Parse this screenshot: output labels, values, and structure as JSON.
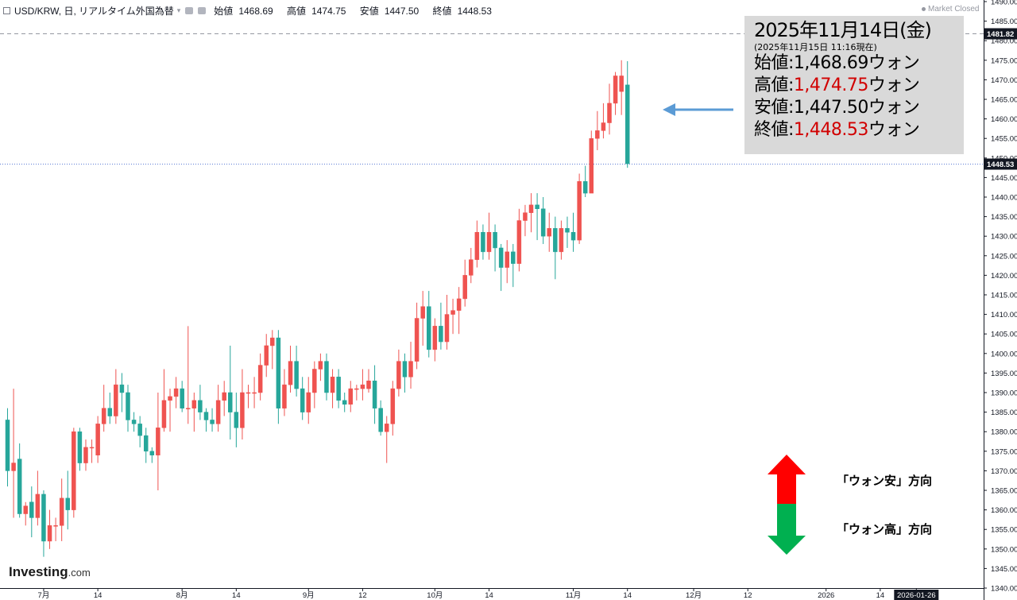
{
  "header": {
    "symbol": "USD/KRW, 日, リアルタイム外国為替",
    "open_label": "始値",
    "open": "1468.69",
    "high_label": "高値",
    "high": "1474.75",
    "low_label": "安値",
    "low": "1447.50",
    "close_label": "終値",
    "close": "1448.53"
  },
  "market_status": "Market Closed",
  "info_box": {
    "date": "2025年11月14日(金)",
    "asof": "(2025年11月15日 11:16現在)",
    "rows": [
      {
        "label": "始値:",
        "value": "1,468.69",
        "unit": "ウォン",
        "red": false
      },
      {
        "label": "高値:",
        "value": "1,474.75",
        "unit": "ウォン",
        "red": true
      },
      {
        "label": "安値:",
        "value": "1,447.50",
        "unit": "ウォン",
        "red": false
      },
      {
        "label": "終値:",
        "value": "1,448.53",
        "unit": "ウォン",
        "red": true
      }
    ]
  },
  "direction_labels": {
    "up": "「ウォン安」方向",
    "down": "「ウォン高」方向"
  },
  "logo": {
    "main": "Investing",
    "suffix": ".com"
  },
  "colors": {
    "up": "#ef5350",
    "down": "#26a69a",
    "arrow_up": "#ff0000",
    "arrow_down": "#00b050",
    "pointer": "#5b9bd5",
    "price_label": "#131722"
  },
  "chart_data": {
    "type": "candlestick",
    "ylim": [
      1340,
      1490
    ],
    "y_ticks": [
      1340,
      1345,
      1350,
      1355,
      1360,
      1365,
      1370,
      1375,
      1380,
      1385,
      1390,
      1395,
      1400,
      1405,
      1410,
      1415,
      1420,
      1425,
      1430,
      1435,
      1440,
      1445,
      1450,
      1455,
      1460,
      1465,
      1470,
      1475,
      1480,
      1485,
      1490
    ],
    "x_ticks": [
      {
        "label": "7月",
        "index": 6
      },
      {
        "label": "14",
        "index": 15
      },
      {
        "label": "8月",
        "index": 29
      },
      {
        "label": "14",
        "index": 38
      },
      {
        "label": "9月",
        "index": 50
      },
      {
        "label": "12",
        "index": 59
      },
      {
        "label": "10月",
        "index": 71
      },
      {
        "label": "14",
        "index": 80
      },
      {
        "label": "11月",
        "index": 94
      },
      {
        "label": "14",
        "index": 103
      },
      {
        "label": "12月",
        "index": 114
      },
      {
        "label": "12",
        "index": 123
      },
      {
        "label": "2026",
        "index": 136
      },
      {
        "label": "14",
        "index": 145
      },
      {
        "label": "2026-01-26",
        "index": 151
      }
    ],
    "ref_lines": [
      {
        "value": 1481.82,
        "label": "1481.82",
        "style": "dashed"
      },
      {
        "value": 1448.53,
        "label": "1448.53",
        "style": "dotted"
      }
    ],
    "candles": [
      [
        1383,
        1370,
        1386,
        1366
      ],
      [
        1370,
        1372,
        1391,
        1358
      ],
      [
        1373,
        1359,
        1377,
        1358
      ],
      [
        1359,
        1361,
        1362,
        1356
      ],
      [
        1362,
        1358,
        1366,
        1353
      ],
      [
        1358,
        1364,
        1370,
        1356
      ],
      [
        1364,
        1352,
        1365,
        1348
      ],
      [
        1352,
        1356,
        1360,
        1350
      ],
      [
        1356,
        1356,
        1358,
        1352
      ],
      [
        1356,
        1363,
        1368,
        1352
      ],
      [
        1363,
        1360,
        1370,
        1355
      ],
      [
        1360,
        1380,
        1381,
        1358
      ],
      [
        1380,
        1372,
        1381,
        1370
      ],
      [
        1372,
        1376,
        1378,
        1370
      ],
      [
        1376,
        1376,
        1378,
        1372
      ],
      [
        1374,
        1382,
        1384,
        1372
      ],
      [
        1382,
        1386,
        1392,
        1380
      ],
      [
        1386,
        1384,
        1390,
        1382
      ],
      [
        1384,
        1392,
        1396,
        1382
      ],
      [
        1392,
        1390,
        1395,
        1385
      ],
      [
        1390,
        1383,
        1392,
        1380
      ],
      [
        1383,
        1382,
        1385,
        1380
      ],
      [
        1382,
        1379,
        1384,
        1376
      ],
      [
        1379,
        1375,
        1381,
        1372
      ],
      [
        1375,
        1374,
        1376,
        1372
      ],
      [
        1374,
        1381,
        1390,
        1365
      ],
      [
        1381,
        1388,
        1396,
        1380
      ],
      [
        1388,
        1389,
        1391,
        1380
      ],
      [
        1389,
        1391,
        1394,
        1386
      ],
      [
        1391,
        1386,
        1393,
        1385
      ],
      [
        1386,
        1386,
        1407,
        1382
      ],
      [
        1386,
        1388,
        1390,
        1380
      ],
      [
        1388,
        1385,
        1392,
        1383
      ],
      [
        1385,
        1383,
        1386,
        1380
      ],
      [
        1383,
        1382,
        1386,
        1380
      ],
      [
        1382,
        1388,
        1392,
        1380
      ],
      [
        1388,
        1390,
        1393,
        1384
      ],
      [
        1390,
        1385,
        1402,
        1378
      ],
      [
        1385,
        1381,
        1390,
        1376
      ],
      [
        1381,
        1390,
        1396,
        1378
      ],
      [
        1390,
        1390,
        1392,
        1386
      ],
      [
        1390,
        1390,
        1394,
        1386
      ],
      [
        1390,
        1397,
        1400,
        1388
      ],
      [
        1397,
        1402,
        1405,
        1394
      ],
      [
        1402,
        1404,
        1406,
        1396
      ],
      [
        1404,
        1386,
        1406,
        1382
      ],
      [
        1386,
        1392,
        1396,
        1384
      ],
      [
        1392,
        1398,
        1402,
        1390
      ],
      [
        1398,
        1391,
        1402,
        1389
      ],
      [
        1391,
        1385,
        1394,
        1383
      ],
      [
        1385,
        1390,
        1394,
        1382
      ],
      [
        1390,
        1396,
        1398,
        1386
      ],
      [
        1396,
        1398,
        1400,
        1393
      ],
      [
        1398,
        1390,
        1400,
        1388
      ],
      [
        1390,
        1394,
        1396,
        1386
      ],
      [
        1394,
        1388,
        1396,
        1386
      ],
      [
        1388,
        1387,
        1390,
        1385
      ],
      [
        1387,
        1391,
        1393,
        1385
      ],
      [
        1391,
        1391,
        1392,
        1388
      ],
      [
        1391,
        1392,
        1396,
        1388
      ],
      [
        1391,
        1393,
        1396,
        1390
      ],
      [
        1393,
        1386,
        1397,
        1382
      ],
      [
        1386,
        1380,
        1388,
        1379
      ],
      [
        1380,
        1382,
        1384,
        1372
      ],
      [
        1382,
        1391,
        1393,
        1379
      ],
      [
        1391,
        1398,
        1401,
        1389
      ],
      [
        1398,
        1394,
        1400,
        1390
      ],
      [
        1394,
        1398,
        1403,
        1391
      ],
      [
        1398,
        1409,
        1413,
        1396
      ],
      [
        1409,
        1412,
        1416,
        1402
      ],
      [
        1412,
        1401,
        1416,
        1399
      ],
      [
        1401,
        1407,
        1409,
        1398
      ],
      [
        1407,
        1403,
        1413,
        1401
      ],
      [
        1403,
        1410,
        1415,
        1401
      ],
      [
        1410,
        1411,
        1414,
        1405
      ],
      [
        1411,
        1414,
        1417,
        1405
      ],
      [
        1414,
        1420,
        1424,
        1412
      ],
      [
        1420,
        1424,
        1427,
        1418
      ],
      [
        1424,
        1431,
        1434,
        1422
      ],
      [
        1431,
        1426,
        1433,
        1424
      ],
      [
        1426,
        1431,
        1436,
        1424
      ],
      [
        1431,
        1427,
        1433,
        1421
      ],
      [
        1427,
        1422,
        1428,
        1416
      ],
      [
        1422,
        1426,
        1429,
        1418
      ],
      [
        1426,
        1423,
        1428,
        1417
      ],
      [
        1423,
        1434,
        1437,
        1421
      ],
      [
        1434,
        1436,
        1438,
        1430
      ],
      [
        1436,
        1438,
        1441,
        1431
      ],
      [
        1438,
        1437,
        1441,
        1429
      ],
      [
        1437,
        1430,
        1440,
        1428
      ],
      [
        1430,
        1432,
        1436,
        1426
      ],
      [
        1432,
        1426,
        1435,
        1419
      ],
      [
        1426,
        1432,
        1434,
        1424
      ],
      [
        1432,
        1431,
        1435,
        1427
      ],
      [
        1431,
        1429,
        1436,
        1426
      ],
      [
        1429,
        1444,
        1446,
        1428
      ],
      [
        1444,
        1441,
        1448,
        1440
      ],
      [
        1441,
        1455,
        1457,
        1447
      ],
      [
        1455,
        1457,
        1462,
        1452
      ],
      [
        1457,
        1459,
        1464,
        1455
      ],
      [
        1459,
        1464,
        1469,
        1456
      ],
      [
        1464,
        1471,
        1472,
        1461
      ],
      [
        1467,
        1471,
        1475,
        1461
      ],
      [
        1468.69,
        1448.53,
        1474.75,
        1447.5
      ]
    ]
  }
}
